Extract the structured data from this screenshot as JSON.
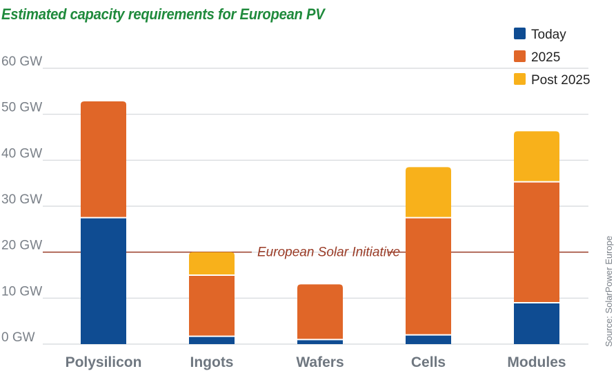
{
  "chart_data": {
    "type": "bar",
    "stacked": true,
    "title": "Estimated capacity requirements for European PV",
    "xlabel": "",
    "ylabel": "",
    "categories": [
      "Polysilicon",
      "Ingots",
      "Wafers",
      "Cells",
      "Modules"
    ],
    "series": [
      {
        "name": "Today",
        "color": "#0f4c92",
        "values": [
          27.5,
          1.7,
          1.0,
          2.0,
          9.0
        ]
      },
      {
        "name": "2025",
        "color": "#e06628",
        "values": [
          25.3,
          13.3,
          12.0,
          25.5,
          26.3
        ]
      },
      {
        "name": "Post 2025",
        "color": "#f8b11b",
        "values": [
          0,
          5.0,
          0,
          11.0,
          11.0
        ]
      }
    ],
    "ylim": [
      0,
      60
    ],
    "yticks": [
      0,
      10,
      20,
      30,
      40,
      50,
      60
    ],
    "ytick_labels": [
      "0 GW",
      "10 GW",
      "20 GW",
      "30 GW",
      "40 GW",
      "50 GW",
      "60 GW"
    ],
    "grid": true,
    "legend_position": "top-right",
    "reference_line": {
      "value": 20,
      "label": "European Solar Initiative",
      "color": "#9a3b26"
    },
    "source": "Source: SolarPower Europe"
  }
}
